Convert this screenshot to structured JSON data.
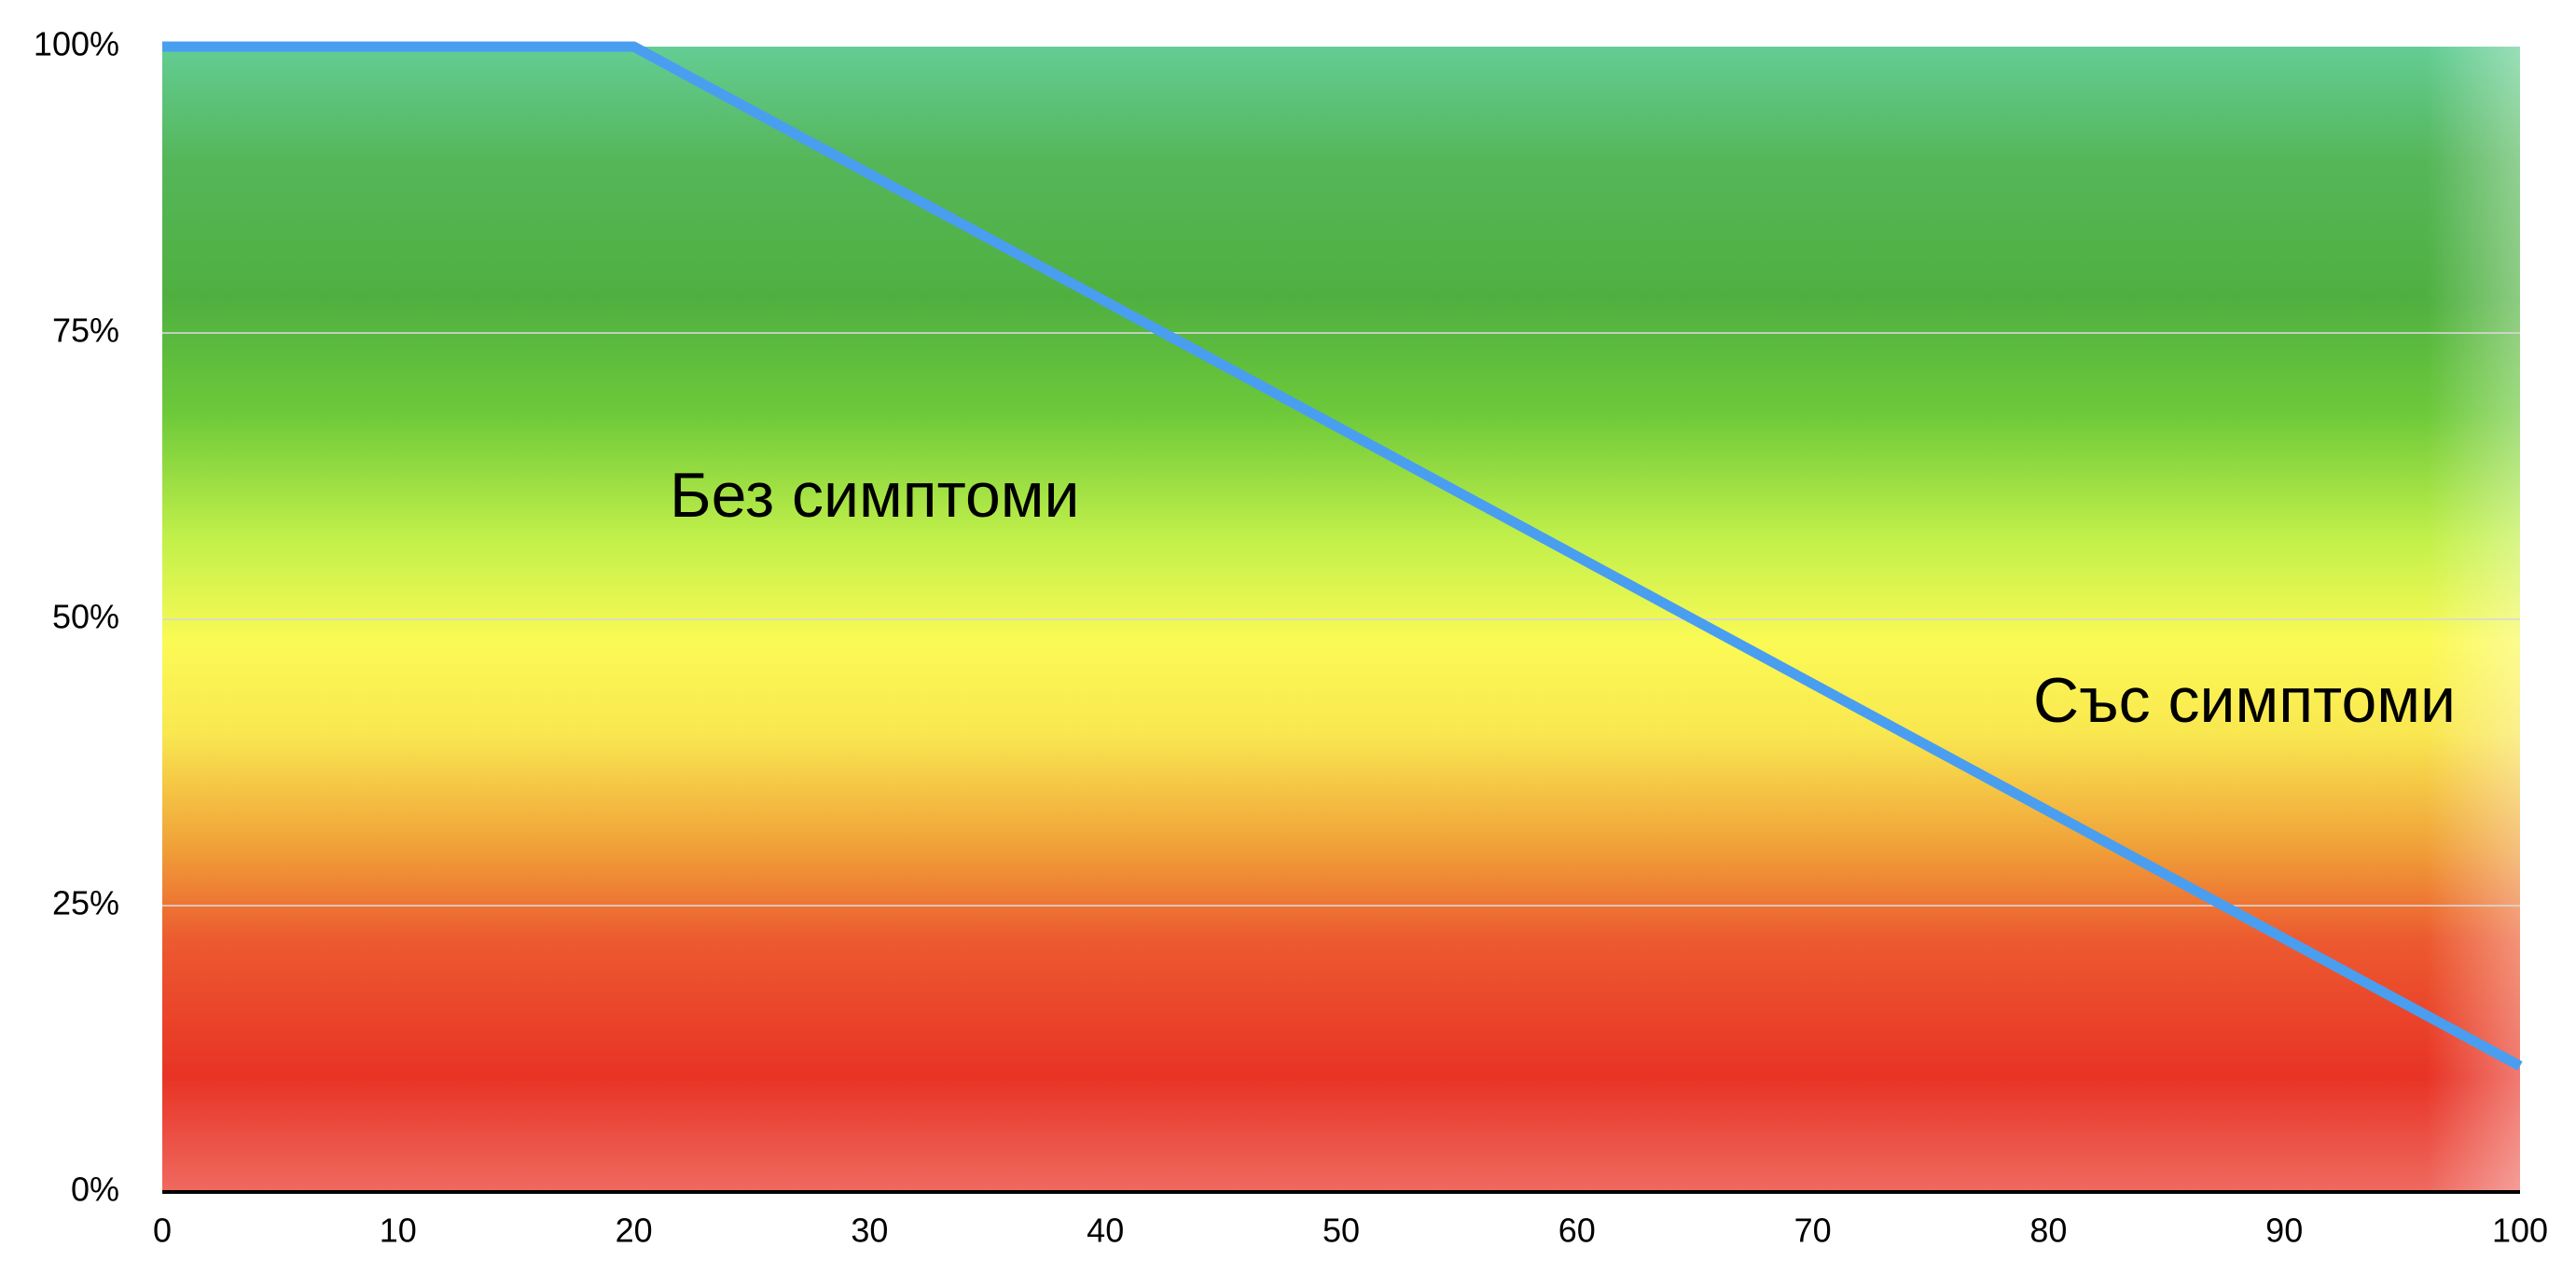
{
  "chart_data": {
    "type": "line",
    "x": [
      0,
      20,
      100
    ],
    "series": [
      {
        "color": "#4a9ef0",
        "values": [
          100,
          100,
          11
        ]
      }
    ],
    "annotations": [
      "Без симптоми",
      "Със симптоми"
    ],
    "xlim": [
      0,
      100
    ],
    "xticks": [
      0,
      10,
      20,
      30,
      40,
      50,
      60,
      70,
      80,
      90,
      100
    ],
    "ylim": [
      0,
      100
    ],
    "yticks": [
      {
        "value": 0,
        "label": "0%"
      },
      {
        "value": 25,
        "label": "25%"
      },
      {
        "value": 50,
        "label": "50%"
      },
      {
        "value": 75,
        "label": "75%"
      },
      {
        "value": 100,
        "label": "100%"
      }
    ],
    "grid": true
  }
}
